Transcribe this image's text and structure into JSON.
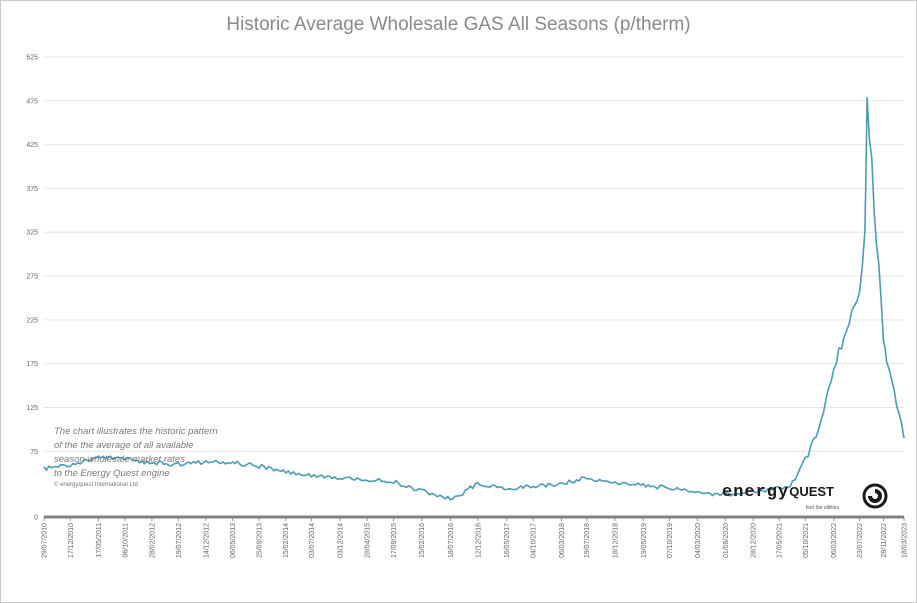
{
  "chart_data": {
    "type": "line",
    "title": "Historic Average Wholesale GAS All Seasons (p/therm)",
    "xlabel": "",
    "ylabel": "",
    "ylim": [
      0,
      525
    ],
    "y_ticks": [
      "0",
      "75",
      "125",
      "175",
      "225",
      "275",
      "325",
      "375",
      "425",
      "475",
      "525"
    ],
    "x_tick_labels": [
      "29/07/2010",
      "17/12/2010",
      "17/05/2011",
      "06/10/2011",
      "28/02/2012",
      "19/07/2012",
      "14/12/2012",
      "06/05/2013",
      "25/09/2013",
      "15/02/2014",
      "03/07/2014",
      "03/12/2014",
      "28/04/2015",
      "17/09/2015",
      "15/02/2016",
      "18/07/2016",
      "12/12/2016",
      "16/05/2017",
      "04/10/2017",
      "06/03/2018",
      "19/07/2018",
      "18/12/2018",
      "19/05/2019",
      "07/10/2019",
      "04/03/2020",
      "01/08/2020",
      "28/12/2020",
      "17/05/2021",
      "05/10/2021",
      "06/03/2022",
      "23/07/2022",
      "28/11/2022",
      "18/03/2023"
    ],
    "grid": true,
    "legend": "none",
    "series": [
      {
        "color": "#4b9bb1",
        "x": [
          "29/07/2010",
          "17/12/2010",
          "17/05/2011",
          "06/10/2011",
          "28/02/2012",
          "19/07/2012",
          "14/12/2012",
          "06/05/2013",
          "25/09/2013",
          "15/02/2014",
          "03/07/2014",
          "03/12/2014",
          "28/04/2015",
          "17/09/2015",
          "15/02/2016",
          "18/07/2016",
          "12/12/2016",
          "16/05/2017",
          "04/10/2017",
          "06/03/2018",
          "19/07/2018",
          "18/12/2018",
          "19/05/2019",
          "07/10/2019",
          "04/03/2020",
          "01/08/2020",
          "15/07/2021",
          "05/10/2021",
          "15/12/2021",
          "06/03/2022",
          "23/07/2022",
          "20/08/2022",
          "01/09/2022",
          "28/11/2022",
          "15/12/2022",
          "18/03/2023"
        ],
        "values": [
          55,
          60,
          68,
          66,
          62,
          60,
          63,
          62,
          58,
          52,
          48,
          45,
          43,
          40,
          30,
          20,
          38,
          33,
          35,
          38,
          45,
          38,
          36,
          33,
          28,
          25,
          35,
          65,
          100,
          170,
          260,
          320,
          480,
          200,
          180,
          90
        ]
      }
    ]
  },
  "annotation": {
    "lines": [
      "The chart illustrates the historic pattern",
      "of the the average of all available",
      "season wholesale market rates",
      "to the Energy Quest engine"
    ],
    "copyright": "© energyquest International Ltd"
  },
  "logo": {
    "word": "energy",
    "word2": "QUEST",
    "tagline": "find the utilities",
    "colors": {
      "text": "#1a1a1a"
    }
  },
  "colors": {
    "line": "#4b9bb1",
    "axis": "#808080",
    "grid": "#e6e6e6",
    "title": "#8a8a8a"
  }
}
